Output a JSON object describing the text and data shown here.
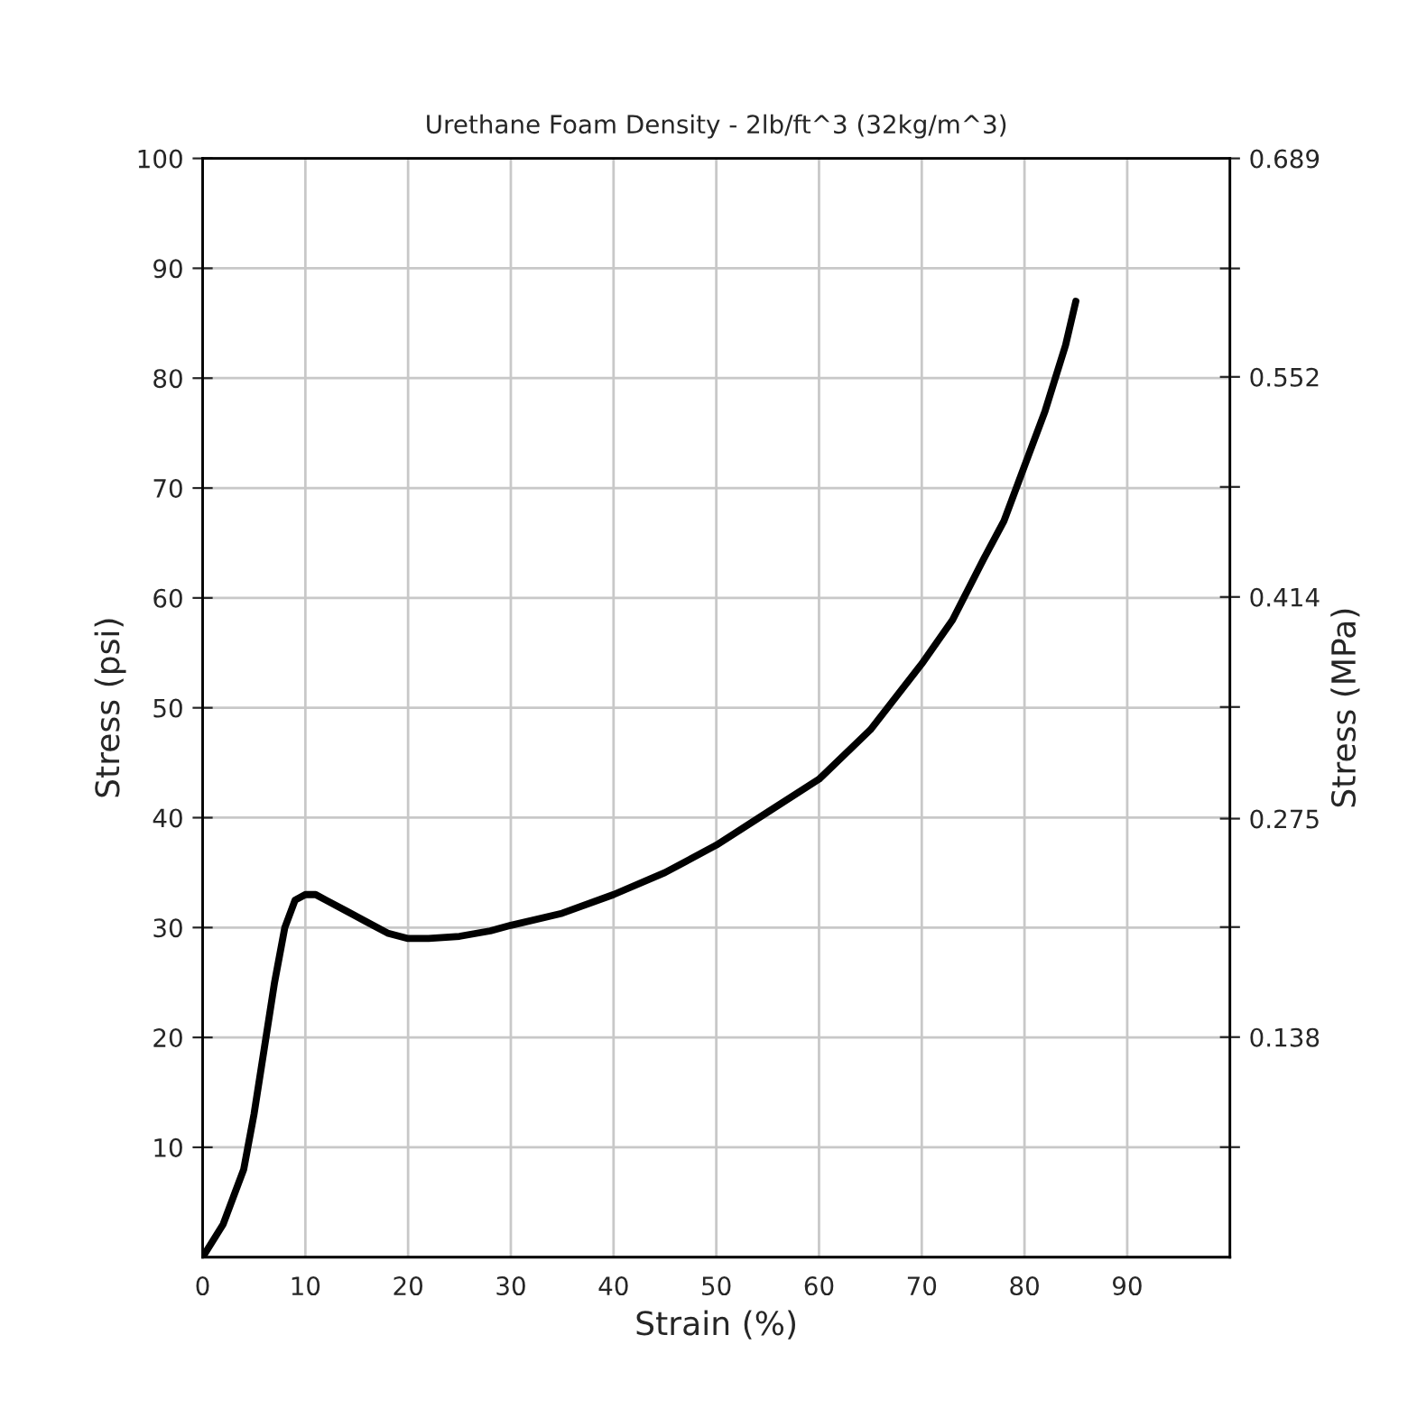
{
  "chart_data": {
    "type": "line",
    "title": "Urethane Foam Density - 2lb/ft^3 (32kg/m^3)",
    "xlabel": "Strain (%)",
    "ylabel": "Stress (psi)",
    "y2label": "Stress (MPa)",
    "xlim": [
      0,
      100
    ],
    "xticks": [
      0,
      10,
      20,
      30,
      40,
      50,
      60,
      70,
      80,
      90
    ],
    "ylim": [
      0,
      100
    ],
    "yticks": [
      10,
      20,
      30,
      40,
      50,
      60,
      70,
      80,
      90,
      100
    ],
    "y2lim": [
      0,
      0.689
    ],
    "y2ticks": [
      {
        "value": 0.069,
        "label": null
      },
      0.138,
      {
        "value": 0.207,
        "label": null
      },
      0.275,
      {
        "value": 0.345,
        "label": null
      },
      0.414,
      {
        "value": 0.483,
        "label": null
      },
      0.552,
      {
        "value": 0.62,
        "label": null
      },
      0.689
    ],
    "grid": true,
    "marker": "none",
    "line_style": "solid",
    "series": [
      {
        "color": "#000000",
        "x": [
          0,
          2,
          4,
          5,
          6,
          7,
          8,
          9,
          10,
          11,
          12,
          14,
          16,
          18,
          20,
          22,
          25,
          28,
          30,
          35,
          40,
          45,
          50,
          55,
          60,
          65,
          70,
          73,
          76,
          78,
          80,
          82,
          84,
          85
        ],
        "values": [
          0,
          3,
          8,
          13,
          19,
          25,
          30,
          32.5,
          33,
          33,
          32.5,
          31.5,
          30.5,
          29.5,
          29,
          29,
          29.2,
          29.7,
          30.2,
          31.3,
          33,
          35,
          37.5,
          40.5,
          43.5,
          48,
          54,
          58,
          63.5,
          67,
          72,
          77,
          83,
          87
        ]
      }
    ]
  }
}
